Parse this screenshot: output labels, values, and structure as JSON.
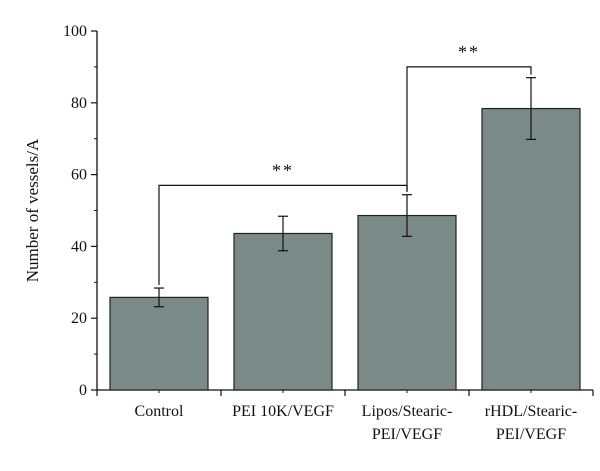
{
  "chart_data": {
    "type": "bar",
    "title": "",
    "ylabel": "Number of vessels/A",
    "xlabel": "",
    "ylim": [
      0,
      100
    ],
    "yticks": [
      0,
      20,
      40,
      60,
      80,
      100
    ],
    "categories": [
      [
        "Control"
      ],
      [
        "PEI 10K/VEGF"
      ],
      [
        "Lipos/Stearic-",
        "PEI/VEGF"
      ],
      [
        "rHDL/Stearic-",
        "PEI/VEGF"
      ]
    ],
    "values": [
      25.8,
      43.6,
      48.6,
      78.4
    ],
    "errors": [
      2.6,
      4.8,
      5.8,
      8.6
    ],
    "bar_color": "#7a8a87",
    "significance": [
      {
        "from": 0,
        "to": 2,
        "label": "**",
        "y": 57
      },
      {
        "from": 2,
        "to": 3,
        "label": "**",
        "y": 90
      }
    ]
  }
}
